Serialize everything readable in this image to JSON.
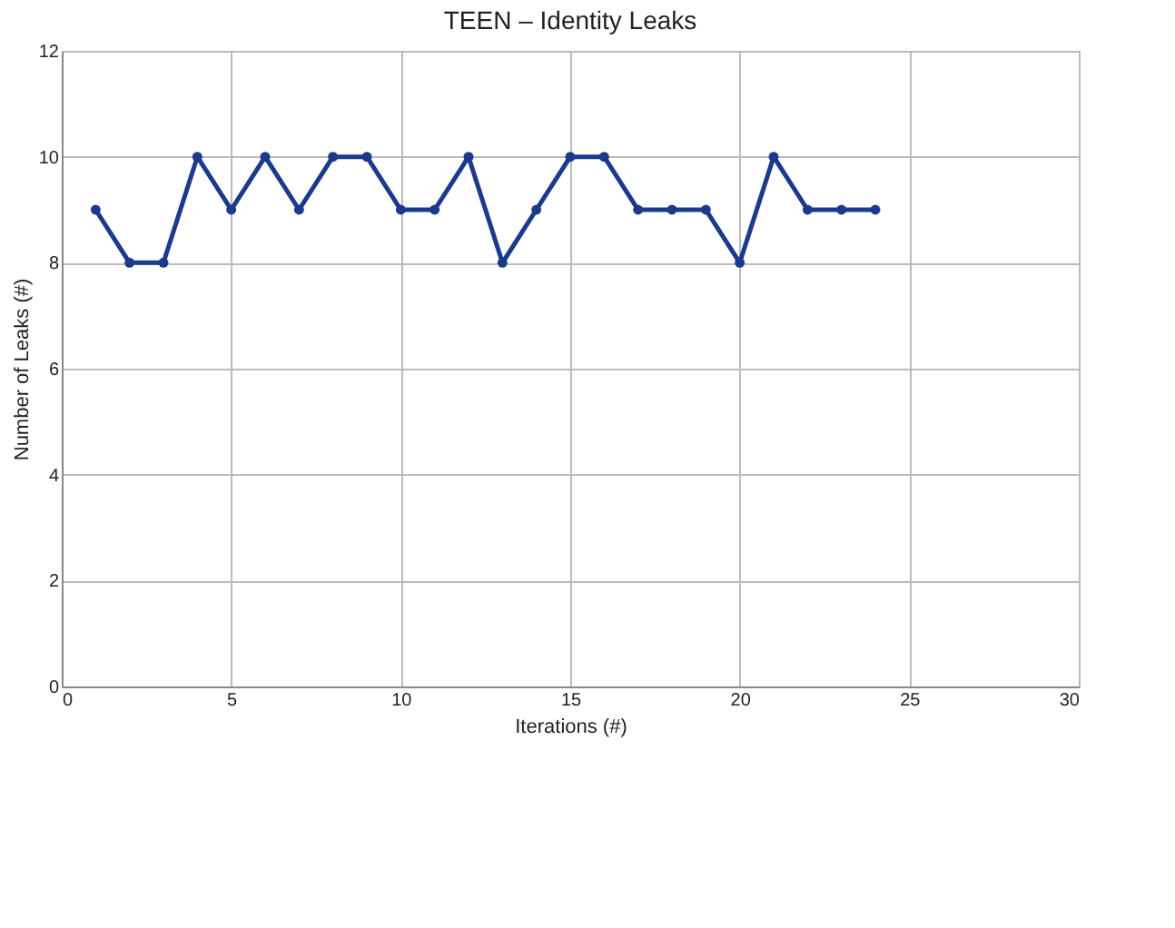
{
  "chart_data": {
    "type": "line",
    "title": "TEEN – Identity Leaks",
    "xlabel": "Iterations (#)",
    "ylabel": "Number of Leaks (#)",
    "x": [
      1,
      2,
      3,
      4,
      5,
      6,
      7,
      8,
      9,
      10,
      11,
      12,
      13,
      14,
      15,
      16,
      17,
      18,
      19,
      20,
      21,
      22,
      23,
      24
    ],
    "series": [
      {
        "color": "#1c3a8c",
        "values": [
          9,
          8,
          8,
          10,
          9,
          10,
          9,
          10,
          10,
          9,
          9,
          10,
          8,
          9,
          10,
          10,
          9,
          9,
          9,
          8,
          10,
          9,
          9,
          9
        ]
      }
    ],
    "xlim": [
      0,
      30
    ],
    "xticks": [
      0,
      5,
      10,
      15,
      20,
      25,
      30
    ],
    "ylim": [
      0,
      12
    ],
    "yticks": [
      0,
      2,
      4,
      6,
      8,
      10,
      12
    ],
    "grid": true,
    "marker": "circle",
    "line_style": "solid"
  }
}
